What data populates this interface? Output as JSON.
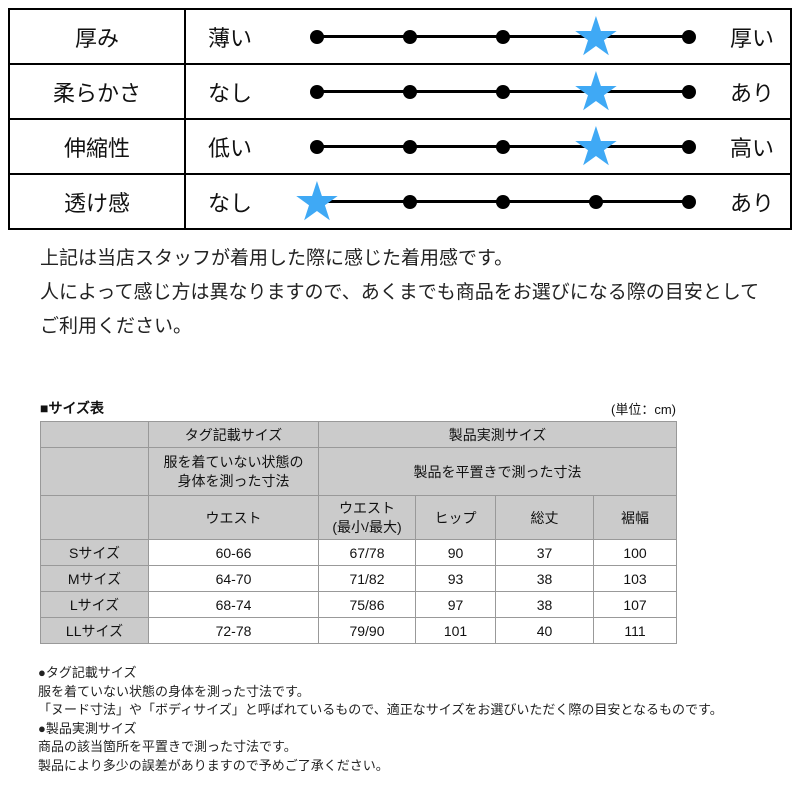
{
  "rating_table": {
    "dot_count": 5,
    "star_color": "#3FA9F5",
    "rows": [
      {
        "label": "厚み",
        "left": "薄い",
        "right": "厚い",
        "star_index": 3
      },
      {
        "label": "柔らかさ",
        "left": "なし",
        "right": "あり",
        "star_index": 3
      },
      {
        "label": "伸縮性",
        "left": "低い",
        "right": "高い",
        "star_index": 3
      },
      {
        "label": "透け感",
        "left": "なし",
        "right": "あり",
        "star_index": 0
      }
    ]
  },
  "notes": {
    "line1": "上記は当店スタッフが着用した際に感じた着用感です。",
    "line2": "人によって感じ方は異なりますので、あくまでも商品をお選びになる際の目安として",
    "line3": "ご利用ください。"
  },
  "size_section": {
    "title": "■サイズ表",
    "unit": "(単位：cm)",
    "table": {
      "header1": {
        "tag": "タグ記載サイズ",
        "product": "製品実測サイズ"
      },
      "header2": {
        "tag": "服を着ていない状態の\n身体を測った寸法",
        "product": "製品を平置きで測った寸法"
      },
      "columns": [
        "ウエスト",
        "ウエスト\n(最小/最大)",
        "ヒップ",
        "総丈",
        "裾幅"
      ],
      "rows": [
        {
          "label": "Sサイズ",
          "values": [
            "60-66",
            "67/78",
            "90",
            "37",
            "100"
          ]
        },
        {
          "label": "Mサイズ",
          "values": [
            "64-70",
            "71/82",
            "93",
            "38",
            "103"
          ]
        },
        {
          "label": "Lサイズ",
          "values": [
            "68-74",
            "75/86",
            "97",
            "38",
            "107"
          ]
        },
        {
          "label": "LLサイズ",
          "values": [
            "72-78",
            "79/90",
            "101",
            "40",
            "111"
          ]
        }
      ]
    }
  },
  "footnotes": [
    "●タグ記載サイズ",
    "服を着ていない状態の身体を測った寸法です。",
    "「ヌード寸法」や「ボディサイズ」と呼ばれているもので、適正なサイズをお選びいただく際の目安となるものです。",
    "●製品実測サイズ",
    "商品の該当箇所を平置きで測った寸法です。",
    "製品により多少の誤差がありますので予めご了承ください。"
  ]
}
